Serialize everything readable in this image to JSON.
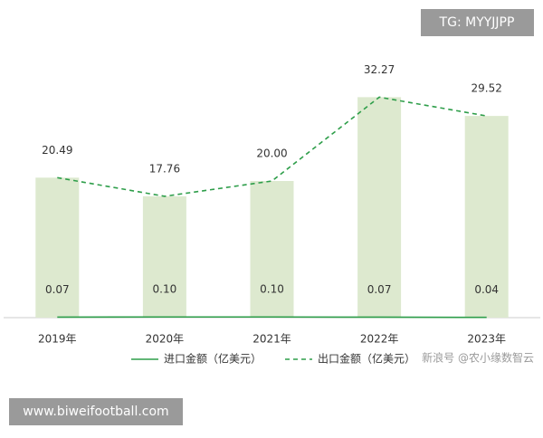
{
  "chart_data": {
    "type": "bar-line",
    "categories": [
      "2019年",
      "2020年",
      "2021年",
      "2022年",
      "2023年"
    ],
    "series": [
      {
        "name": "进口金额（亿美元）",
        "color": "#2e9e4a",
        "style": "solid",
        "values": [
          0.07,
          0.1,
          0.1,
          0.07,
          0.04
        ],
        "value_labels": [
          "0.07",
          "0.10",
          "0.10",
          "0.07",
          "0.04"
        ]
      },
      {
        "name": "出口金额（亿美元）",
        "color": "#2e9e4a",
        "style": "dashed",
        "bar_color": "#dde9cf",
        "values": [
          20.49,
          17.76,
          20.0,
          32.27,
          29.52
        ],
        "value_labels": [
          "20.49",
          "17.76",
          "20.00",
          "32.27",
          "29.52"
        ]
      }
    ],
    "ylim": [
      0,
      40
    ]
  },
  "watermarks": [
    "TG: MYYJJPP",
    "www.biweifootball.com",
    "新浪号 @农小缘数智云"
  ]
}
